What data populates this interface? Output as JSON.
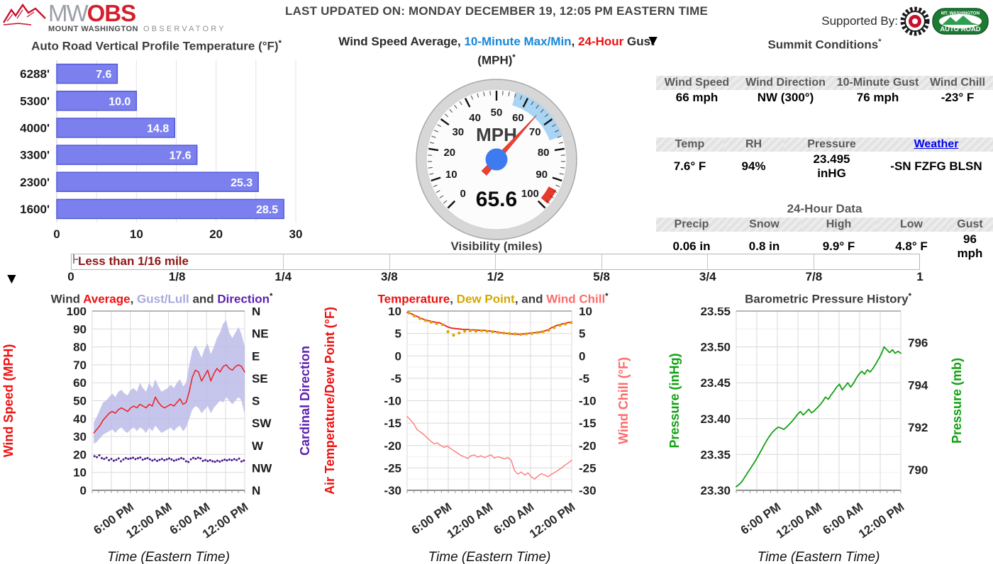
{
  "header": {
    "logo": {
      "mw": "MW",
      "obs": "OBS",
      "line1": "MOUNT WASHINGTON",
      "line2": "OBSERVATORY"
    },
    "last_updated": "LAST UPDATED ON: MONDAY DECEMBER 19, 12:05 PM EASTERN TIME",
    "supported_by": "Supported By:",
    "autoroad_top": "MT. WASHINGTON",
    "autoroad_bottom": "AUTO ROAD"
  },
  "summit": {
    "title": "Summit Conditions",
    "asterisk": "*",
    "table1": {
      "headers": [
        "Wind Speed",
        "Wind Direction",
        "10-Minute Gust",
        "Wind Chill"
      ],
      "values": [
        "66 mph",
        "NW (300°)",
        "76 mph",
        "-23° F"
      ]
    },
    "table2": {
      "headers": [
        "Temp",
        "RH",
        "Pressure",
        "Weather"
      ],
      "values": [
        "7.6° F",
        "94%",
        "23.495 inHG",
        "-SN FZFG BLSN"
      ],
      "link_header_index": 3
    },
    "table3": {
      "title": "24-Hour Data",
      "headers": [
        "Precip",
        "Snow",
        "High",
        "Low",
        "Gust"
      ],
      "values": [
        "0.06 in",
        "0.8 in",
        "9.9° F",
        "4.8° F",
        "96 mph"
      ]
    }
  },
  "visibility": {
    "title": "Visibility (miles)",
    "current_label": "Less than 1/16 mile",
    "ticks": [
      "0",
      "1/8",
      "1/4",
      "3/8",
      "1/2",
      "5/8",
      "3/4",
      "7/8",
      "1"
    ]
  },
  "chart_data": [
    {
      "id": "vertical-profile-temperature",
      "type": "bar",
      "title_parts": [
        {
          "text": "Auto Road Vertical Profile Temperature (°F)",
          "color": "#3d3d3d"
        },
        {
          "text": "*",
          "color": "#111111",
          "sup": true
        }
      ],
      "categories": [
        "6288'",
        "5300'",
        "4000'",
        "3300'",
        "2300'",
        "1600'"
      ],
      "values": [
        7.6,
        10.0,
        14.8,
        17.6,
        25.3,
        28.5
      ],
      "value_labels": [
        "7.6",
        "10.0",
        "14.8",
        "17.6",
        "25.3",
        "28.5"
      ],
      "xlim": [
        0,
        30
      ],
      "x_ticks": [
        0,
        10,
        20,
        30
      ],
      "grid_step": 5,
      "bar_color": "#7b80ee",
      "bar_border": "#545ad6"
    },
    {
      "id": "wind-gauge",
      "type": "gauge",
      "title_parts": [
        {
          "text": "Wind Speed Average, ",
          "color": "#2b2b2b"
        },
        {
          "text": "10-Minute Max/Min",
          "color": "#1787d8"
        },
        {
          "text": ", ",
          "color": "#2b2b2b"
        },
        {
          "text": "24-Hour",
          "color": "#ee1010"
        },
        {
          "text": " Gust",
          "color": "#2b2b2b"
        }
      ],
      "title_parts2": [
        {
          "text": "(MPH)",
          "color": "#2b2b2b"
        },
        {
          "text": "*",
          "color": "#111111",
          "sup": true
        }
      ],
      "unit": "MPH",
      "value": 65.6,
      "value_label": "65.6",
      "min": 0,
      "max": 100,
      "tick_step": 10,
      "minor_step": 2,
      "band": [
        56,
        76
      ],
      "gust_mark": [
        93.5,
        98.5
      ],
      "band_color": "#aad4f3",
      "gust_color": "#e8392b",
      "needle_color": "#ef4034",
      "hub_color": "#3e7bf0"
    },
    {
      "id": "wind-history",
      "type": "line",
      "title_parts": [
        {
          "text": "Wind ",
          "color": "#3d3d3d"
        },
        {
          "text": "Average",
          "color": "#ee1010"
        },
        {
          "text": ", ",
          "color": "#3d3d3d"
        },
        {
          "text": "Gust/Lull",
          "color": "#a9a9dc"
        },
        {
          "text": " and ",
          "color": "#3d3d3d"
        },
        {
          "text": "Direction",
          "color": "#5c1fb0"
        },
        {
          "text": "*",
          "color": "#111111",
          "sup": true
        }
      ],
      "xlabel": "Time (Eastern Time)",
      "ylim": [
        0,
        100
      ],
      "y_ticks_left": [
        {
          "v": 0,
          "label": "0"
        },
        {
          "v": 10,
          "label": "10"
        },
        {
          "v": 20,
          "label": "20"
        },
        {
          "v": 30,
          "label": "30"
        },
        {
          "v": 40,
          "label": "40"
        },
        {
          "v": 50,
          "label": "50"
        },
        {
          "v": 60,
          "label": "60"
        },
        {
          "v": 70,
          "label": "70"
        },
        {
          "v": 80,
          "label": "80"
        },
        {
          "v": 90,
          "label": "90"
        },
        {
          "v": 100,
          "label": "100"
        }
      ],
      "y_right": {
        "mode": "even",
        "labels": [
          "N",
          "NE",
          "E",
          "SE",
          "S",
          "SW",
          "W",
          "NW",
          "N"
        ]
      },
      "ylabel_left": {
        "text": "Wind Speed (MPH)",
        "color": "#ee1010"
      },
      "ylabel_right": {
        "text": "Cardinal Direction",
        "color": "#5c1fb0"
      },
      "x_ticks": [
        {
          "f": 0.25,
          "label": "6:00 PM"
        },
        {
          "f": 0.5,
          "label": "12:00 AM"
        },
        {
          "f": 0.75,
          "label": "6:00 AM"
        },
        {
          "f": 1,
          "label": "12:00 PM"
        }
      ],
      "x_grid_divisions": 8,
      "series": [
        {
          "name": "gust-lull-band",
          "kind": "band",
          "color": "#b9b9e8",
          "opacity": 0.82,
          "x0": 0.01,
          "dx": 0.0202,
          "lo": [
            26,
            27,
            29,
            31,
            32,
            33,
            34,
            32,
            34,
            35,
            33,
            32,
            34,
            35,
            33,
            35,
            34,
            32,
            35,
            33,
            36,
            34,
            32,
            33,
            34,
            35,
            33,
            35,
            36,
            33,
            35,
            40,
            45,
            47,
            46,
            43,
            45,
            47,
            43,
            46,
            48,
            50,
            49,
            52,
            50,
            48,
            50,
            52,
            50,
            42
          ],
          "hi": [
            38,
            41,
            45,
            49,
            50,
            52,
            54,
            52,
            55,
            56,
            54,
            53,
            56,
            57,
            55,
            60,
            57,
            55,
            60,
            57,
            62,
            58,
            55,
            56,
            57,
            59,
            57,
            60,
            62,
            58,
            60,
            70,
            78,
            81,
            78,
            74,
            79,
            82,
            76,
            80,
            85,
            88,
            93,
            95,
            88,
            85,
            88,
            91,
            87,
            80
          ]
        },
        {
          "name": "wind-average",
          "kind": "line",
          "color": "#ee1c1c",
          "width": 1.5,
          "x0": 0.01,
          "dx": 0.0202,
          "v": [
            32,
            34,
            36,
            39,
            41,
            43,
            44,
            43,
            45,
            46,
            45,
            44,
            46,
            47,
            46,
            48,
            47,
            46,
            48,
            47,
            52,
            49,
            47,
            46,
            47,
            48,
            47,
            49,
            51,
            48,
            49,
            55,
            63,
            67,
            66,
            61,
            64,
            67,
            61,
            65,
            68,
            66,
            69,
            70,
            68,
            67,
            69,
            70,
            69,
            66
          ]
        },
        {
          "name": "wind-direction",
          "kind": "dots",
          "color": "#46148c",
          "r": 1.5,
          "x0": 0.015,
          "dx": 0.0158,
          "v": [
            19,
            18.5,
            19.5,
            18,
            17.5,
            18.2,
            16.8,
            17.5,
            16.5,
            17,
            17.8,
            16.2,
            17.2,
            18,
            17.5,
            17.8,
            18.2,
            17.4,
            17.9,
            18.3,
            17.1,
            17.6,
            18,
            17.3,
            16.6,
            17.2,
            16.4,
            17,
            17.5,
            16.8,
            17.3,
            17.8,
            17.2,
            16.5,
            17,
            17.4,
            18,
            17.5,
            16.2,
            15.8,
            17.3,
            18.1,
            17.6,
            18.2,
            17.8,
            16.4,
            16.9,
            16.3,
            16.8,
            16.2,
            15.9,
            16.5,
            16,
            16.6,
            17.1,
            16.7,
            17.2,
            16.8,
            17.4,
            16.9,
            17.7,
            16.1,
            16.6
          ]
        }
      ]
    },
    {
      "id": "temp-history",
      "type": "line",
      "title_parts": [
        {
          "text": "Temperature",
          "color": "#ee1010"
        },
        {
          "text": ", ",
          "color": "#3d3d3d"
        },
        {
          "text": "Dew Point",
          "color": "#d4a800"
        },
        {
          "text": ", and ",
          "color": "#3d3d3d"
        },
        {
          "text": "Wind Chill",
          "color": "#ff6a6a"
        },
        {
          "text": "*",
          "color": "#111111",
          "sup": true
        }
      ],
      "xlabel": "Time (Eastern Time)",
      "ylim": [
        -30,
        10
      ],
      "y_minor_step": 2.5,
      "y_ticks_left": [
        {
          "v": -30,
          "label": "-30"
        },
        {
          "v": -25,
          "label": "-25"
        },
        {
          "v": -20,
          "label": "-20"
        },
        {
          "v": -15,
          "label": "-15"
        },
        {
          "v": -10,
          "label": "-10"
        },
        {
          "v": -5,
          "label": "-5"
        },
        {
          "v": 0,
          "label": "0"
        },
        {
          "v": 5,
          "label": "5"
        },
        {
          "v": 10,
          "label": "10"
        }
      ],
      "y_right": {
        "mode": "values",
        "items": [
          {
            "v": -30,
            "label": "-30"
          },
          {
            "v": -25,
            "label": "-25"
          },
          {
            "v": -20,
            "label": "-20"
          },
          {
            "v": -15,
            "label": "-15"
          },
          {
            "v": -10,
            "label": "-10"
          },
          {
            "v": -5,
            "label": "-5"
          },
          {
            "v": 0,
            "label": "0"
          },
          {
            "v": 5,
            "label": "5"
          },
          {
            "v": 10,
            "label": "10"
          }
        ]
      },
      "ylabel_left": {
        "text": "Air Temperature/Dew Point (°F)",
        "color": "#ee1010"
      },
      "ylabel_right": {
        "text": "Wind Chill (°F)",
        "color": "#ff6a6a"
      },
      "x_ticks": [
        {
          "f": 0.25,
          "label": "6:00 PM"
        },
        {
          "f": 0.5,
          "label": "12:00 AM"
        },
        {
          "f": 0.75,
          "label": "6:00 AM"
        },
        {
          "f": 1,
          "label": "12:00 PM"
        }
      ],
      "x_grid_divisions": 8,
      "series": [
        {
          "name": "air-temperature",
          "kind": "line",
          "color": "#ee1c1c",
          "width": 1.8,
          "x0": 0,
          "dx": 0.0244,
          "v": [
            9.7,
            9.4,
            9.0,
            8.6,
            8.2,
            7.9,
            7.7,
            7.5,
            7.4,
            7.0,
            6.5,
            6.2,
            6.1,
            6.0,
            5.9,
            5.9,
            5.8,
            5.8,
            5.7,
            5.7,
            5.6,
            5.5,
            5.4,
            5.2,
            5.1,
            5.0,
            4.9,
            4.9,
            4.8,
            4.9,
            5.0,
            5.1,
            5.2,
            5.3,
            5.5,
            5.8,
            6.3,
            6.7,
            7.0,
            7.2,
            7.4,
            7.6
          ]
        },
        {
          "name": "dew-point",
          "kind": "dots",
          "color": "#d4a800",
          "r": 2.1,
          "x0": 0.01,
          "dx": 0.034,
          "v": [
            9.6,
            8.9,
            8.3,
            7.9,
            7.5,
            7.2,
            7.0,
            5.4,
            4.6,
            5.1,
            5.5,
            5.6,
            5.5,
            5.6,
            5.5,
            5.4,
            5.2,
            5.1,
            5.0,
            4.9,
            4.8,
            4.9,
            5.0,
            5.2,
            5.4,
            5.7,
            6.3,
            6.8,
            7.1,
            7.4
          ]
        },
        {
          "name": "wind-chill",
          "kind": "line",
          "color": "#ff7a7a",
          "width": 1.4,
          "x0": 0,
          "dx": 0.0204,
          "v": [
            -13.5,
            -14.3,
            -15.2,
            -16.5,
            -17.0,
            -17.6,
            -18.3,
            -19.0,
            -19.6,
            -19.4,
            -20.0,
            -20.4,
            -20.1,
            -20.7,
            -21.2,
            -21.7,
            -22.2,
            -22.5,
            -22.9,
            -22.3,
            -22.1,
            -22.6,
            -22.3,
            -22.7,
            -22.4,
            -22.1,
            -22.8,
            -22.5,
            -22.7,
            -23.0,
            -22.7,
            -23.3,
            -25.6,
            -26.4,
            -25.9,
            -26.6,
            -26.1,
            -27.0,
            -27.5,
            -26.8,
            -26.3,
            -26.6,
            -27.0,
            -26.4,
            -26.0,
            -25.5,
            -25.0,
            -24.4,
            -23.9,
            -23.3
          ]
        }
      ]
    },
    {
      "id": "pressure-history",
      "type": "line",
      "title_parts": [
        {
          "text": "Barometric Pressure History",
          "color": "#3d3d3d"
        },
        {
          "text": "*",
          "color": "#111111",
          "sup": true
        }
      ],
      "xlabel": "Time (Eastern Time)",
      "ylim": [
        23.3,
        23.55
      ],
      "y_minor_step": 0.025,
      "y_ticks_left": [
        {
          "v": 23.3,
          "label": "23.30"
        },
        {
          "v": 23.35,
          "label": "23.35"
        },
        {
          "v": 23.4,
          "label": "23.40"
        },
        {
          "v": 23.45,
          "label": "23.45"
        },
        {
          "v": 23.5,
          "label": "23.50"
        },
        {
          "v": 23.55,
          "label": "23.55"
        }
      ],
      "y_right": {
        "mode": "values",
        "items": [
          {
            "v": 23.3287,
            "label": "790"
          },
          {
            "v": 23.3878,
            "label": "792"
          },
          {
            "v": 23.4468,
            "label": "794"
          },
          {
            "v": 23.5059,
            "label": "796"
          }
        ]
      },
      "ylabel_left": {
        "text": "Pressure (inHg)",
        "color": "#12a112"
      },
      "ylabel_right": {
        "text": "Pressure (mb)",
        "color": "#12a112"
      },
      "x_ticks": [
        {
          "f": 0.25,
          "label": "6:00 PM"
        },
        {
          "f": 0.5,
          "label": "12:00 AM"
        },
        {
          "f": 0.75,
          "label": "6:00 AM"
        },
        {
          "f": 1,
          "label": "12:00 PM"
        }
      ],
      "x_grid_divisions": 8,
      "series": [
        {
          "name": "pressure",
          "kind": "line",
          "color": "#12a112",
          "width": 1.8,
          "x0": 0,
          "dx": 0.01695,
          "v": [
            23.305,
            23.308,
            23.312,
            23.318,
            23.324,
            23.33,
            23.336,
            23.342,
            23.349,
            23.356,
            23.363,
            23.37,
            23.376,
            23.381,
            23.385,
            23.388,
            23.387,
            23.385,
            23.388,
            23.392,
            23.396,
            23.401,
            23.406,
            23.41,
            23.405,
            23.409,
            23.413,
            23.408,
            23.411,
            23.415,
            23.419,
            23.424,
            23.43,
            23.427,
            23.433,
            23.438,
            23.444,
            23.448,
            23.44,
            23.445,
            23.45,
            23.444,
            23.449,
            23.456,
            23.462,
            23.466,
            23.462,
            23.468,
            23.465,
            23.47,
            23.476,
            23.483,
            23.49,
            23.5,
            23.496,
            23.492,
            23.496,
            23.491,
            23.494,
            23.491
          ]
        }
      ]
    }
  ]
}
